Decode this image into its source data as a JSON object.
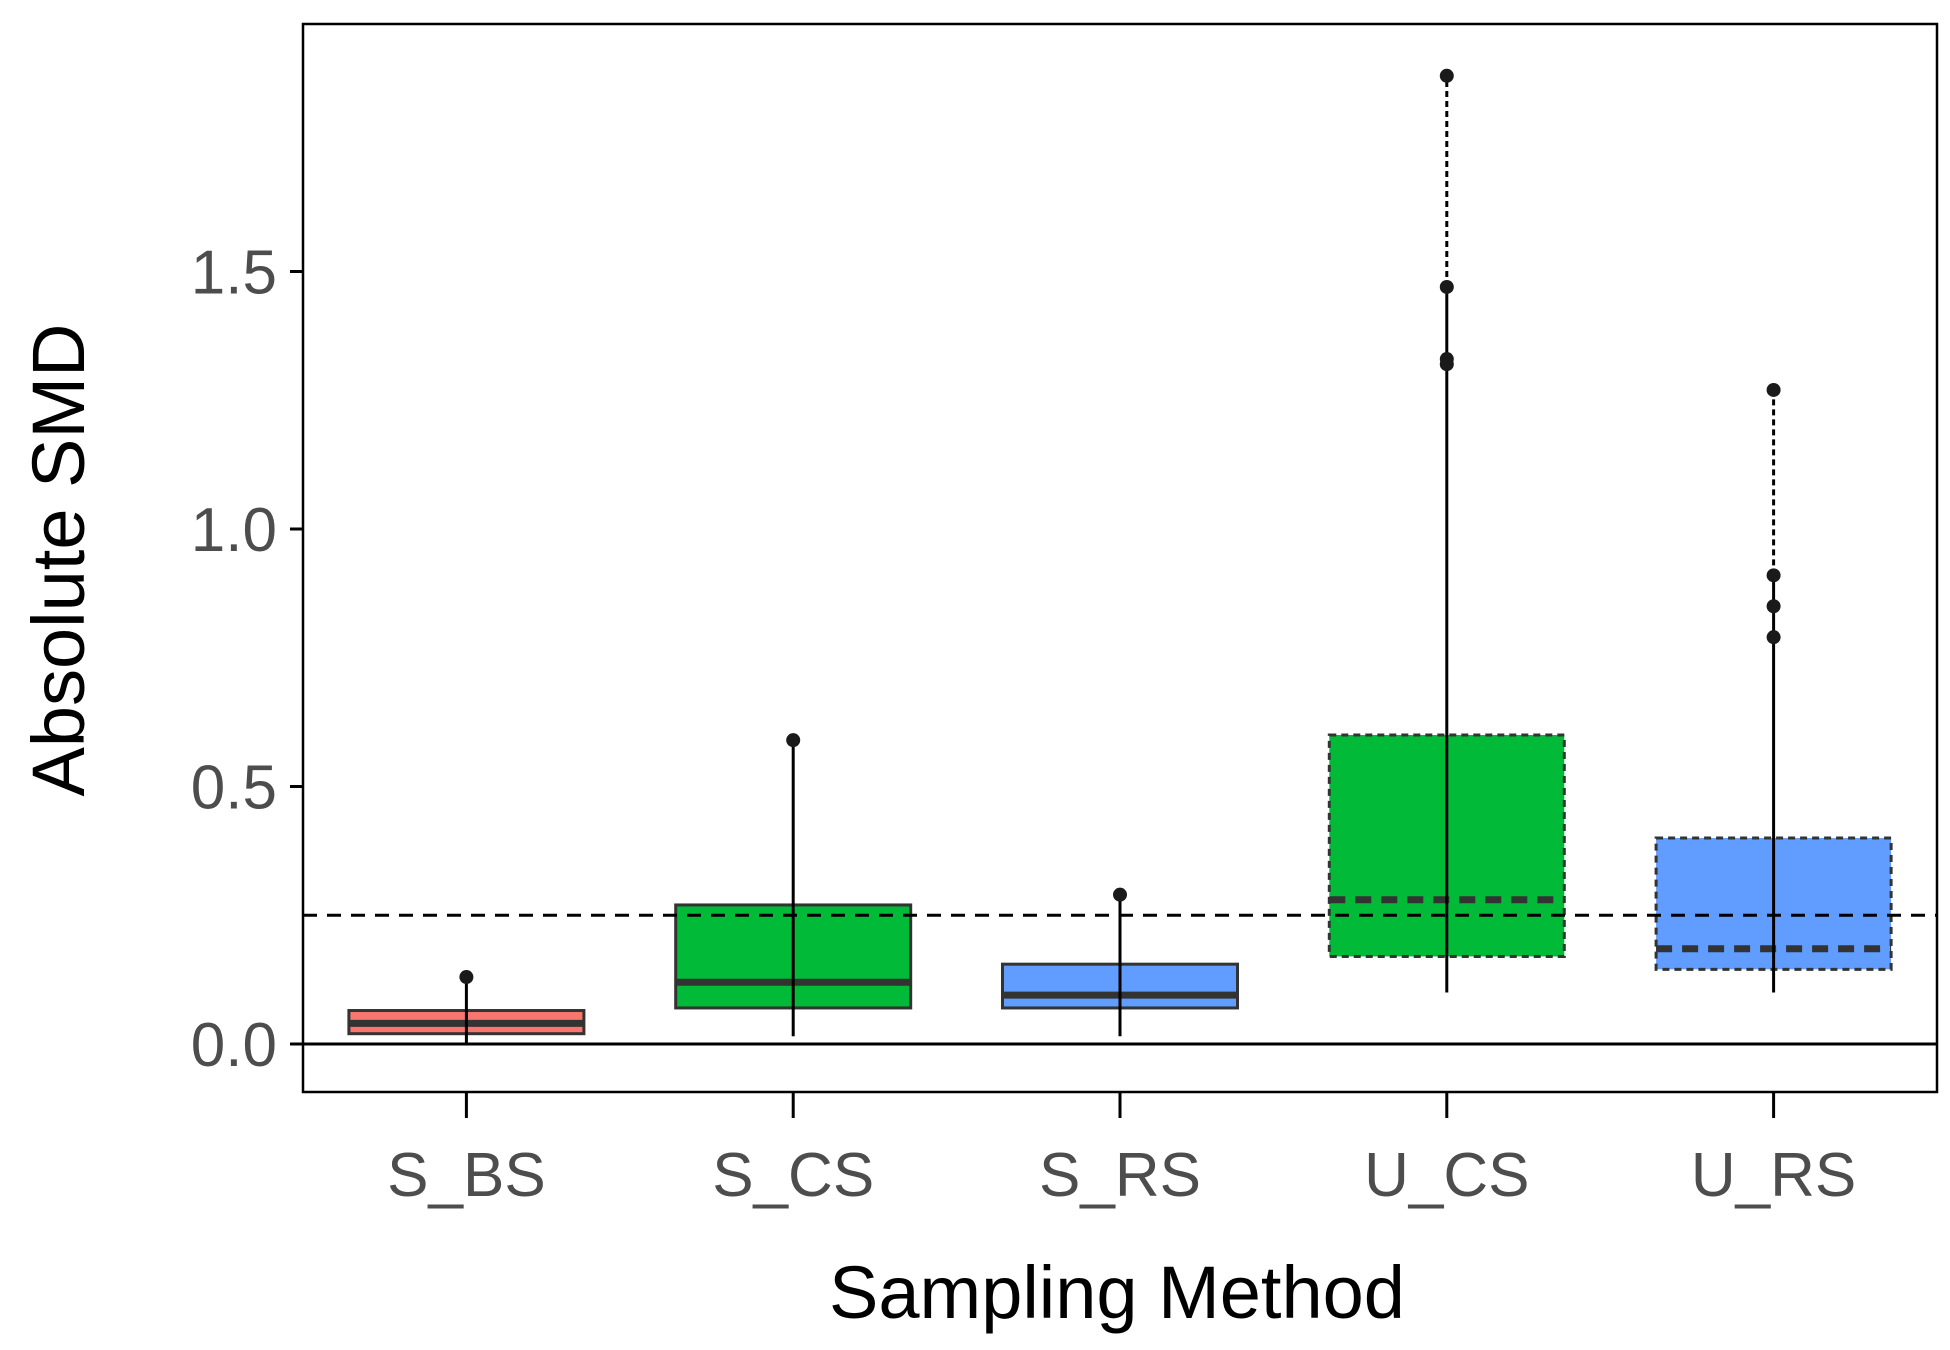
{
  "chart_data": {
    "type": "box",
    "title": "",
    "xlabel": "Sampling Method",
    "ylabel": "Absolute SMD",
    "ylim": [
      -0.1,
      1.97
    ],
    "yticks": [
      0.0,
      0.5,
      1.0,
      1.5
    ],
    "ytick_labels": [
      "0.0",
      "0.5",
      "1.0",
      "1.5"
    ],
    "grid": false,
    "legend": "none",
    "reference_lines": [
      {
        "y": 0.0,
        "style": "solid"
      },
      {
        "y": 0.25,
        "style": "dashed"
      }
    ],
    "categories": [
      "S_BS",
      "S_CS",
      "S_RS",
      "U_CS",
      "U_RS"
    ],
    "boxes": [
      {
        "category": "S_BS",
        "q1": 0.02,
        "median": 0.04,
        "q3": 0.065,
        "whisker_low": 0.0,
        "whisker_high": 0.13,
        "outliers": [
          0.13
        ],
        "fill": "#F8766D",
        "outline": "solid"
      },
      {
        "category": "S_CS",
        "q1": 0.07,
        "median": 0.12,
        "q3": 0.27,
        "whisker_low": 0.015,
        "whisker_high": 0.59,
        "outliers": [
          0.59
        ],
        "fill": "#00BA38",
        "outline": "solid"
      },
      {
        "category": "S_RS",
        "q1": 0.07,
        "median": 0.095,
        "q3": 0.155,
        "whisker_low": 0.015,
        "whisker_high": 0.29,
        "outliers": [
          0.29
        ],
        "fill": "#619CFF",
        "outline": "solid"
      },
      {
        "category": "U_CS",
        "q1": 0.17,
        "median": 0.28,
        "q3": 0.6,
        "whisker_low": 0.1,
        "whisker_high": 1.88,
        "whisker_high_dashed_from": 1.47,
        "outliers": [
          1.32,
          1.33,
          1.47,
          1.88
        ],
        "fill": "#00BA38",
        "outline": "dashed"
      },
      {
        "category": "U_RS",
        "q1": 0.145,
        "median": 0.185,
        "q3": 0.4,
        "whisker_low": 0.1,
        "whisker_high": 1.27,
        "whisker_high_dashed_from": 0.91,
        "outliers": [
          0.79,
          0.85,
          0.91,
          1.27
        ],
        "fill": "#619CFF",
        "outline": "dashed"
      }
    ]
  }
}
